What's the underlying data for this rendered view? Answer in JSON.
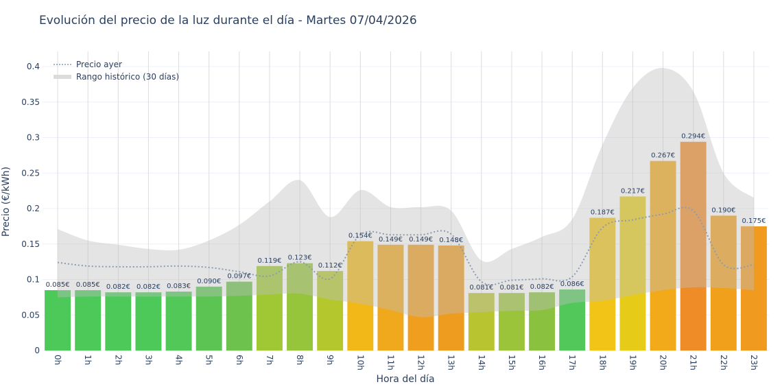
{
  "chart_data": {
    "type": "bar",
    "title": "Evolución del precio de la luz durante el día - Martes 07/04/2026",
    "xlabel": "Hora del día",
    "ylabel": "Precio (€/kWh)",
    "ylim": [
      0,
      0.42
    ],
    "yticks": [
      0,
      0.05,
      0.1,
      0.15,
      0.2,
      0.25,
      0.3,
      0.35,
      0.4
    ],
    "ytick_labels": [
      "0",
      "0.05",
      "0.1",
      "0.15",
      "0.2",
      "0.25",
      "0.3",
      "0.35",
      "0.4"
    ],
    "grid": true,
    "legend_position": "top-left",
    "categories": [
      "0h",
      "1h",
      "2h",
      "3h",
      "4h",
      "5h",
      "6h",
      "7h",
      "8h",
      "9h",
      "10h",
      "11h",
      "12h",
      "13h",
      "14h",
      "15h",
      "16h",
      "17h",
      "18h",
      "19h",
      "20h",
      "21h",
      "22h",
      "23h"
    ],
    "values": [
      0.085,
      0.085,
      0.082,
      0.082,
      0.083,
      0.09,
      0.097,
      0.119,
      0.123,
      0.112,
      0.154,
      0.149,
      0.149,
      0.148,
      0.081,
      0.081,
      0.082,
      0.086,
      0.187,
      0.217,
      0.267,
      0.294,
      0.19,
      0.175
    ],
    "data_labels": [
      "0.085€",
      "0.085€",
      "0.082€",
      "0.082€",
      "0.083€",
      "0.090€",
      "0.097€",
      "0.119€",
      "0.123€",
      "0.112€",
      "0.154€",
      "0.149€",
      "0.149€",
      "0.148€",
      "0.081€",
      "0.081€",
      "0.082€",
      "0.086€",
      "0.187€",
      "0.217€",
      "0.267€",
      "0.294€",
      "0.190€",
      "0.175€"
    ],
    "bar_colors": [
      "#4dc95a",
      "#4dc95a",
      "#4dc95a",
      "#4dc95a",
      "#52c858",
      "#5cc453",
      "#6cc24c",
      "#a0c835",
      "#96c43a",
      "#b4c82e",
      "#f2b818",
      "#f0a81c",
      "#ef9e1e",
      "#ee9c20",
      "#b8c430",
      "#9cc43a",
      "#8ac23f",
      "#52c85a",
      "#f2c418",
      "#e6cc18",
      "#f2aa1a",
      "#ef8c28",
      "#f1a01c",
      "#f09a20"
    ],
    "series": [
      {
        "name": "Precio ayer",
        "type": "line",
        "style": "dotted",
        "color": "#8a9bb0",
        "values": [
          0.124,
          0.119,
          0.118,
          0.118,
          0.119,
          0.117,
          0.111,
          0.105,
          0.125,
          0.101,
          0.163,
          0.163,
          0.163,
          0.164,
          0.097,
          0.099,
          0.101,
          0.104,
          0.173,
          0.184,
          0.192,
          0.197,
          0.121,
          0.121
        ]
      },
      {
        "name": "Rango histórico (30 días)",
        "type": "band",
        "color": "#c8c8c8",
        "upper": [
          0.171,
          0.155,
          0.149,
          0.143,
          0.142,
          0.155,
          0.177,
          0.21,
          0.24,
          0.188,
          0.226,
          0.202,
          0.202,
          0.197,
          0.127,
          0.143,
          0.16,
          0.185,
          0.29,
          0.37,
          0.398,
          0.365,
          0.25,
          0.215
        ],
        "lower": [
          0.075,
          0.076,
          0.076,
          0.076,
          0.076,
          0.076,
          0.077,
          0.079,
          0.08,
          0.072,
          0.066,
          0.057,
          0.047,
          0.052,
          0.054,
          0.056,
          0.057,
          0.067,
          0.07,
          0.078,
          0.085,
          0.089,
          0.088,
          0.085
        ]
      }
    ]
  }
}
